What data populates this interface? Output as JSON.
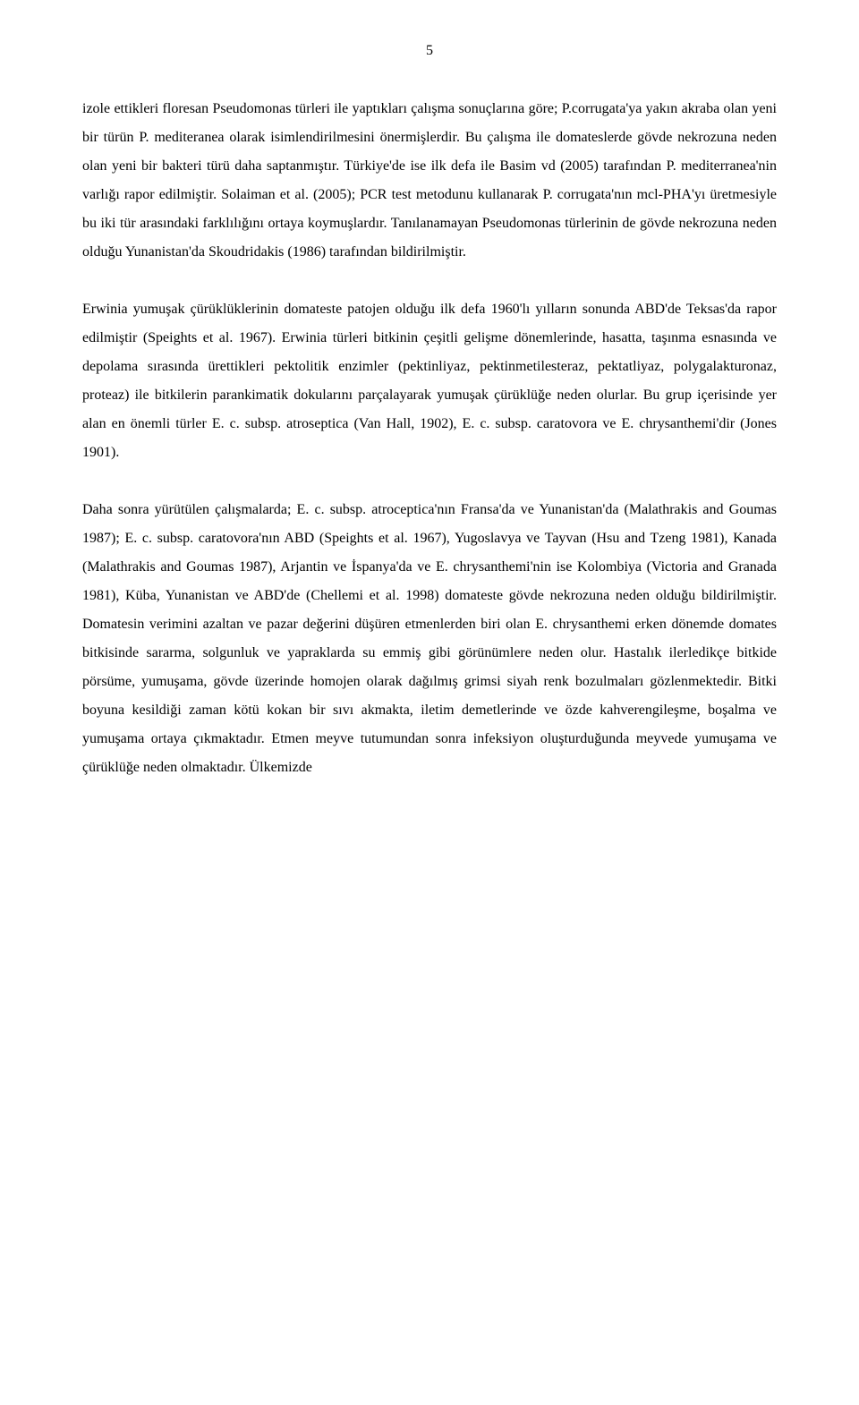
{
  "page": {
    "number": "5",
    "background_color": "#ffffff",
    "text_color": "#000000",
    "font_family": "Times New Roman",
    "font_size_pt": 12,
    "line_height": 2.0,
    "text_align": "justify"
  },
  "paragraphs": {
    "p1": "izole ettikleri floresan Pseudomonas türleri ile yaptıkları çalışma sonuçlarına göre; P.corrugata'ya yakın akraba olan yeni bir türün P. mediteranea olarak isimlendirilmesini önermişlerdir. Bu çalışma ile domateslerde gövde nekrozuna neden olan yeni bir bakteri türü daha saptanmıştır. Türkiye'de ise ilk defa ile Basim vd (2005) tarafından P. mediterranea'nin varlığı rapor edilmiştir. Solaiman et al. (2005); PCR test metodunu kullanarak P. corrugata'nın mcl-PHA'yı üretmesiyle bu iki tür arasındaki farklılığını ortaya koymuşlardır. Tanılanamayan Pseudomonas türlerinin de gövde nekrozuna neden olduğu Yunanistan'da Skoudridakis (1986) tarafından bildirilmiştir.",
    "p2": "Erwinia yumuşak çürüklüklerinin domateste patojen olduğu ilk defa 1960'lı yılların sonunda ABD'de Teksas'da rapor edilmiştir (Speights et al. 1967). Erwinia türleri bitkinin çeşitli gelişme dönemlerinde, hasatta, taşınma esnasında ve depolama sırasında ürettikleri pektolitik enzimler (pektinliyaz, pektinmetilesteraz, pektatliyaz, polygalakturonaz, proteaz) ile bitkilerin parankimatik dokularını parçalayarak yumuşak çürüklüğe neden olurlar. Bu grup içerisinde yer alan en önemli türler E. c. subsp. atroseptica (Van Hall, 1902), E. c. subsp. caratovora ve E. chrysanthemi'dir (Jones 1901).",
    "p3": "Daha sonra yürütülen çalışmalarda; E. c. subsp. atroceptica'nın Fransa'da ve Yunanistan'da (Malathrakis and Goumas 1987); E. c. subsp. caratovora'nın ABD (Speights et al. 1967), Yugoslavya ve Tayvan (Hsu and Tzeng 1981), Kanada (Malathrakis and Goumas 1987), Arjantin ve İspanya'da ve E. chrysanthemi'nin ise Kolombiya (Victoria and Granada 1981), Küba, Yunanistan ve ABD'de (Chellemi et al. 1998) domateste gövde nekrozuna neden olduğu bildirilmiştir. Domatesin verimini azaltan ve pazar değerini düşüren etmenlerden biri olan E. chrysanthemi erken dönemde domates bitkisinde sararma, solgunluk ve yapraklarda su emmiş gibi görünümlere neden olur. Hastalık ilerledikçe bitkide pörsüme, yumuşama, gövde üzerinde homojen olarak dağılmış grimsi siyah renk bozulmaları gözlenmektedir. Bitki boyuna kesildiği zaman kötü kokan bir sıvı akmakta, iletim demetlerinde ve özde kahverengileşme, boşalma ve yumuşama ortaya çıkmaktadır. Etmen meyve tutumundan sonra infeksiyon oluşturduğunda meyvede yumuşama ve çürüklüğe neden olmaktadır. Ülkemizde"
  }
}
